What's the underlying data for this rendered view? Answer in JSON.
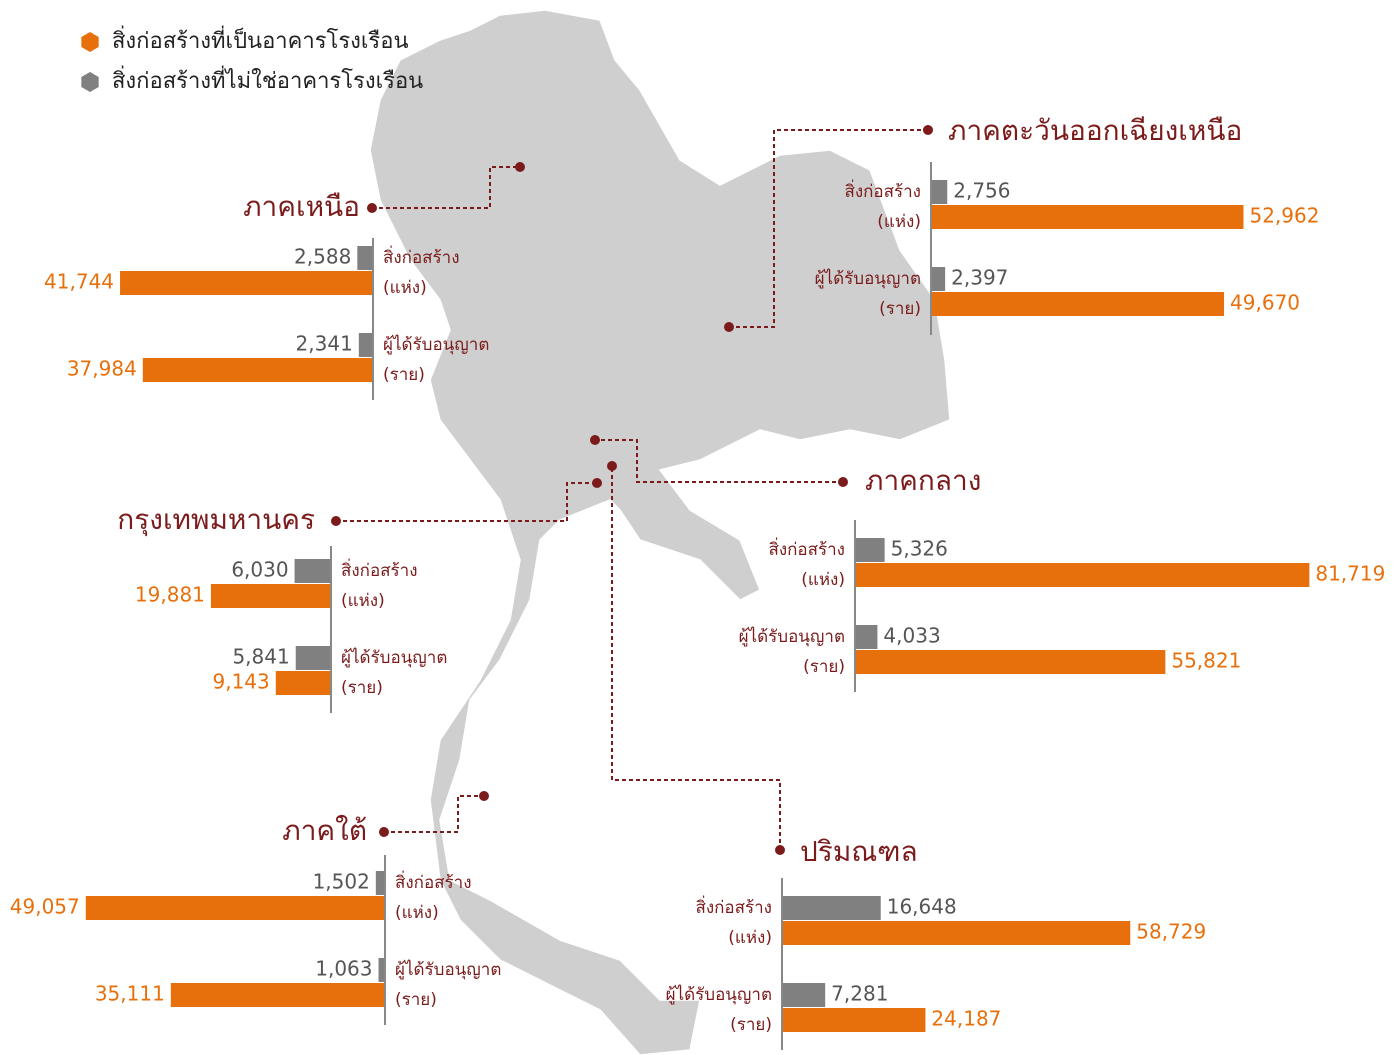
{
  "legend": [
    {
      "name": "สิ่งก่อสร้างที่เป็นอาคารโรงเรือน",
      "color": "#e8700c"
    },
    {
      "name": "สิ่งก่อสร้างที่ไม่ใช่อาคารโรงเรือน",
      "color": "#808080"
    }
  ],
  "regions": [
    {
      "name": "ภาคเหนือ",
      "groups": [
        {
          "label": [
            "สิ่งก่อสร้าง",
            "(แห่ง)"
          ],
          "values": [
            41744,
            2588
          ],
          "value_labels": [
            "41,744",
            "2,588"
          ]
        },
        {
          "label": [
            "ผู้ได้รับอนุญาต",
            "(ราย)"
          ],
          "values": [
            37984,
            2341
          ],
          "value_labels": [
            "37,984",
            "2,341"
          ]
        }
      ]
    },
    {
      "name": "ภาคตะวันออกเฉียงเหนือ",
      "groups": [
        {
          "label": [
            "สิ่งก่อสร้าง",
            "(แห่ง)"
          ],
          "values": [
            52962,
            2756
          ],
          "value_labels": [
            "52,962",
            "2,756"
          ]
        },
        {
          "label": [
            "ผู้ได้รับอนุญาต",
            "(ราย)"
          ],
          "values": [
            49670,
            2397
          ],
          "value_labels": [
            "49,670",
            "2,397"
          ]
        }
      ]
    },
    {
      "name": "กรุงเทพมหานคร",
      "groups": [
        {
          "label": [
            "สิ่งก่อสร้าง",
            "(แห่ง)"
          ],
          "values": [
            19881,
            6030
          ],
          "value_labels": [
            "19,881",
            "6,030"
          ]
        },
        {
          "label": [
            "ผู้ได้รับอนุญาต",
            "(ราย)"
          ],
          "values": [
            9143,
            5841
          ],
          "value_labels": [
            "9,143",
            "5,841"
          ]
        }
      ]
    },
    {
      "name": "ภาคกลาง",
      "groups": [
        {
          "label": [
            "สิ่งก่อสร้าง",
            "(แห่ง)"
          ],
          "values": [
            81719,
            5326
          ],
          "value_labels": [
            "81,719",
            "5,326"
          ]
        },
        {
          "label": [
            "ผู้ได้รับอนุญาต",
            "(ราย)"
          ],
          "values": [
            55821,
            4033
          ],
          "value_labels": [
            "55,821",
            "4,033"
          ]
        }
      ]
    },
    {
      "name": "ภาคใต้",
      "groups": [
        {
          "label": [
            "สิ่งก่อสร้าง",
            "(แห่ง)"
          ],
          "values": [
            49057,
            1502
          ],
          "value_labels": [
            "49,057",
            "1,502"
          ]
        },
        {
          "label": [
            "ผู้ได้รับอนุญาต",
            "(ราย)"
          ],
          "values": [
            35111,
            1063
          ],
          "value_labels": [
            "35,111",
            "1,063"
          ]
        }
      ]
    },
    {
      "name": "ปริมณฑล",
      "groups": [
        {
          "label": [
            "สิ่งก่อสร้าง",
            "(แห่ง)"
          ],
          "values": [
            58729,
            16648
          ],
          "value_labels": [
            "58,729",
            "16,648"
          ]
        },
        {
          "label": [
            "ผู้ได้รับอนุญาต",
            "(ราย)"
          ],
          "values": [
            24187,
            7281
          ],
          "value_labels": [
            "24,187",
            "7,281"
          ]
        }
      ]
    }
  ]
}
